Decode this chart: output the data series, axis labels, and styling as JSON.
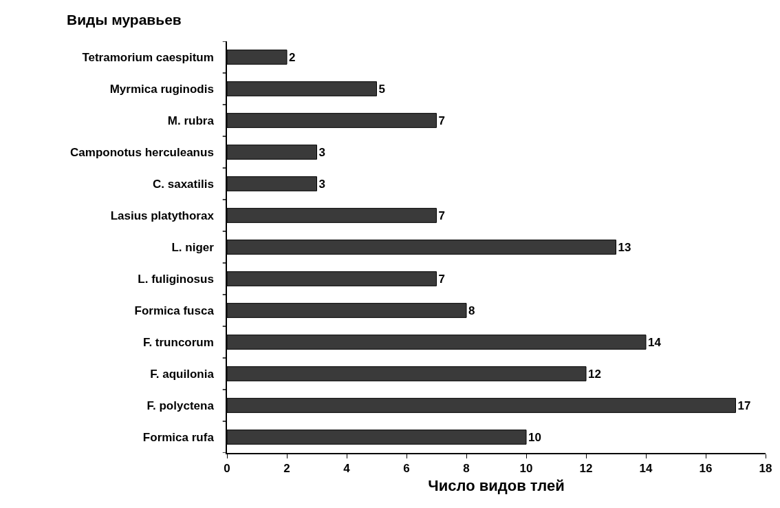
{
  "chart_data": {
    "type": "bar",
    "orientation": "horizontal",
    "ylabel": "Виды муравьев",
    "xlabel": "Число видов тлей",
    "categories": [
      "Tetramorium caespitum",
      "Myrmica ruginodis",
      "M. rubra",
      "Camponotus herculeanus",
      "C. saxatilis",
      "Lasius platythorax",
      "L. niger",
      "L. fuliginosus",
      "Formica fusca",
      "F. truncorum",
      "F. aquilonia",
      "F. polyctena",
      "Formica rufa"
    ],
    "values": [
      2,
      5,
      7,
      3,
      3,
      7,
      13,
      7,
      8,
      14,
      12,
      17,
      10
    ],
    "color": "#3a3a3a",
    "data_labels": true,
    "legend": false,
    "xlim": [
      0,
      18
    ],
    "xticks": [
      0,
      2,
      4,
      6,
      8,
      10,
      12,
      14,
      16,
      18
    ]
  }
}
